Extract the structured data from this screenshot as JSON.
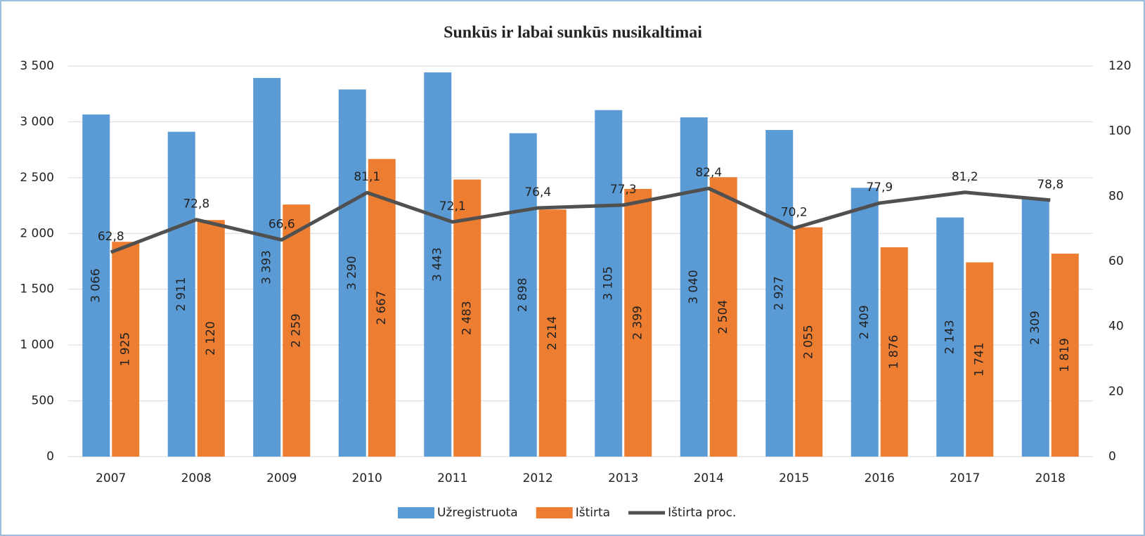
{
  "chart_data": {
    "type": "bar_line",
    "title": "Sunkūs ir labai sunkūs nusikaltimai",
    "categories": [
      "2007",
      "2008",
      "2009",
      "2010",
      "2011",
      "2012",
      "2013",
      "2014",
      "2015",
      "2016",
      "2017",
      "2018"
    ],
    "series": [
      {
        "name": "Užregistruota",
        "color": "#5b9bd5",
        "type": "bar",
        "values": [
          3066,
          2911,
          3393,
          3290,
          3443,
          2898,
          3105,
          3040,
          2927,
          2409,
          2143,
          2309
        ],
        "value_labels": [
          "3 066",
          "2 911",
          "3 393",
          "3 290",
          "3 443",
          "2 898",
          "3 105",
          "3 040",
          "2 927",
          "2 409",
          "2 143",
          "2 309"
        ]
      },
      {
        "name": "Ištirta",
        "color": "#ed7d31",
        "type": "bar",
        "values": [
          1925,
          2120,
          2259,
          2667,
          2483,
          2214,
          2399,
          2504,
          2055,
          1876,
          1741,
          1819
        ],
        "value_labels": [
          "1 925",
          "2 120",
          "2 259",
          "2 667",
          "2 483",
          "2 214",
          "2 399",
          "2 504",
          "2 055",
          "1 876",
          "1 741",
          "1 819"
        ]
      },
      {
        "name": "Ištirta proc.",
        "color": "#505050",
        "type": "line",
        "axis": "y2",
        "values": [
          62.8,
          72.8,
          66.6,
          81.1,
          72.1,
          76.4,
          77.3,
          82.4,
          70.2,
          77.9,
          81.2,
          78.8
        ],
        "value_labels": [
          "62,8",
          "72,8",
          "66,6",
          "81,1",
          "72,1",
          "76,4",
          "77,3",
          "82,4",
          "70,2",
          "77,9",
          "81,2",
          "78,8"
        ]
      }
    ],
    "ylim": [
      0,
      3500
    ],
    "yticks": [
      0,
      500,
      {
        "value": 1000,
        "label": "1 000"
      },
      {
        "value": 1500,
        "label": "1 500"
      },
      {
        "value": 2000,
        "label": "2 000"
      },
      {
        "value": 2500,
        "label": "2 500"
      },
      {
        "value": 3000,
        "label": "3 000"
      },
      {
        "value": 3500,
        "label": "3 500"
      }
    ],
    "y2lim": [
      0,
      120
    ],
    "y2ticks": [
      0,
      20,
      40,
      60,
      80,
      100,
      120
    ],
    "grid": true,
    "legend": "bottom"
  }
}
